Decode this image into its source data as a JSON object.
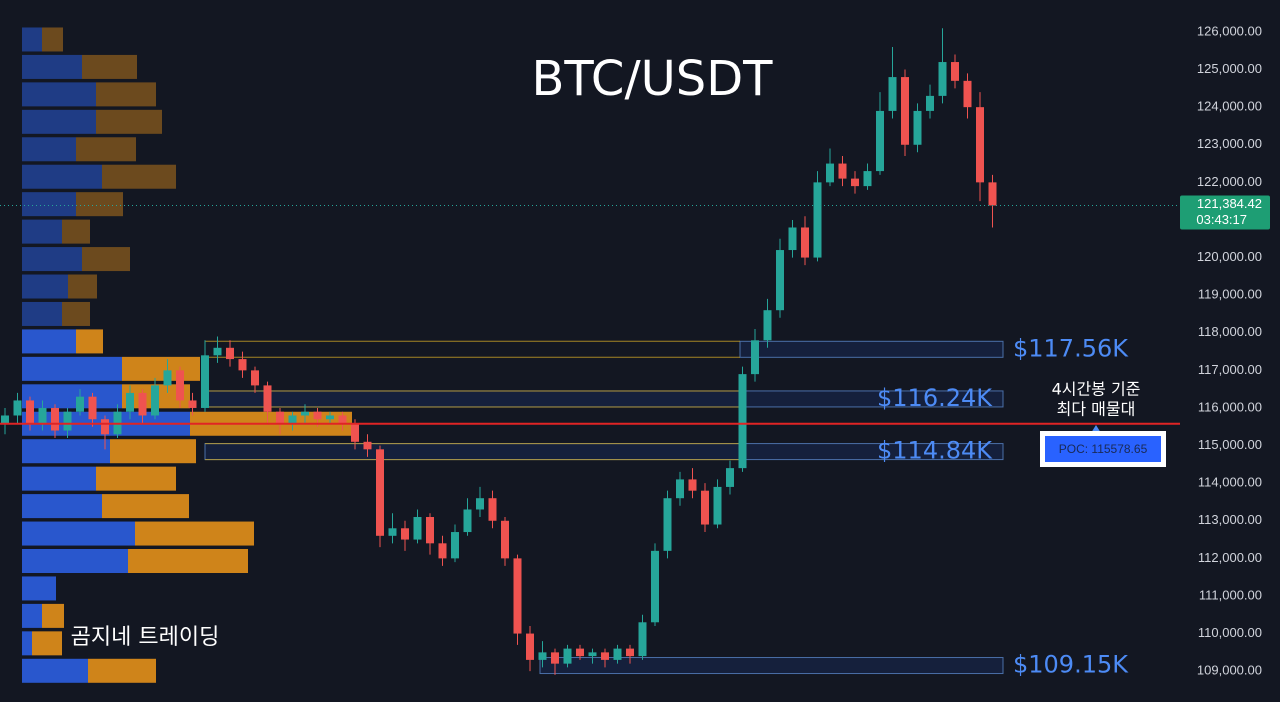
{
  "chart_data": {
    "type": "candlestick",
    "title": "BTC/USDT",
    "watermark": "곰지네 트레이딩",
    "ylim": [
      108180,
      126850
    ],
    "yticks": [
      {
        "value": 109000,
        "label": "109,000.00"
      },
      {
        "value": 110000,
        "label": "110,000.00"
      },
      {
        "value": 111000,
        "label": "111,000.00"
      },
      {
        "value": 112000,
        "label": "112,000.00"
      },
      {
        "value": 113000,
        "label": "113,000.00"
      },
      {
        "value": 114000,
        "label": "114,000.00"
      },
      {
        "value": 115000,
        "label": "115,000.00"
      },
      {
        "value": 116000,
        "label": "116,000.00"
      },
      {
        "value": 117000,
        "label": "117,000.00"
      },
      {
        "value": 118000,
        "label": "118,000.00"
      },
      {
        "value": 119000,
        "label": "119,000.00"
      },
      {
        "value": 120000,
        "label": "120,000.00"
      },
      {
        "value": 121000,
        "label": "121,000.00"
      },
      {
        "value": 122000,
        "label": "122,000.00"
      },
      {
        "value": 123000,
        "label": "123,000.00"
      },
      {
        "value": 124000,
        "label": "124,000.00"
      },
      {
        "value": 125000,
        "label": "125,000.00"
      },
      {
        "value": 126000,
        "label": "126,000.00"
      }
    ],
    "grid": false,
    "up_color": "#26a69a",
    "down_color": "#ef5350",
    "last_price": {
      "value": 121384.42,
      "label": "121,384.42"
    },
    "countdown": "03:43:17",
    "levels": [
      {
        "value": 117560,
        "label": "$117.56K"
      },
      {
        "value": 116240,
        "label": "$116.24K"
      },
      {
        "value": 114840,
        "label": "$114.84K"
      },
      {
        "value": 109150,
        "label": "$109.15K"
      }
    ],
    "poc": {
      "value": 115578.65,
      "label": "POC: 115578.65"
    },
    "annotation": [
      "4시간봉 기준",
      "최다 매물대"
    ],
    "volume_profile": {
      "prices": [
        125800,
        125070,
        124340,
        123610,
        122880,
        122150,
        121420,
        120690,
        119960,
        119230,
        118500,
        117770,
        117040,
        116310,
        115580,
        114850,
        114120,
        113390,
        112660,
        111930,
        111200,
        110470,
        109740,
        109010
      ],
      "buy": [
        20,
        60,
        74,
        74,
        54,
        80,
        54,
        40,
        60,
        46,
        40,
        54,
        100,
        100,
        168,
        88,
        74,
        80,
        113,
        106,
        34,
        20,
        10,
        66
      ],
      "sell": [
        21,
        55,
        60,
        66,
        60,
        74,
        47,
        28,
        48,
        29,
        28,
        27,
        78,
        68,
        162,
        86,
        80,
        87,
        119,
        120,
        0,
        22,
        30,
        68
      ],
      "buy_color": "#2a5bd7",
      "sell_color": "#d98a1a"
    },
    "ohlc": [
      [
        115600,
        116000,
        115300,
        115800
      ],
      [
        115800,
        116400,
        115600,
        116200
      ],
      [
        116200,
        116300,
        115400,
        115600
      ],
      [
        115600,
        116200,
        115400,
        116000
      ],
      [
        116000,
        116100,
        115200,
        115400
      ],
      [
        115400,
        116000,
        115200,
        115900
      ],
      [
        115900,
        116500,
        115800,
        116300
      ],
      [
        116300,
        116400,
        115500,
        115700
      ],
      [
        115700,
        115800,
        114900,
        115300
      ],
      [
        115300,
        116100,
        115200,
        115900
      ],
      [
        115900,
        116600,
        115700,
        116400
      ],
      [
        116400,
        116500,
        115600,
        115800
      ],
      [
        115800,
        116800,
        115700,
        116600
      ],
      [
        116600,
        117300,
        116400,
        117000
      ],
      [
        117000,
        117100,
        116000,
        116200
      ],
      [
        116200,
        116400,
        115800,
        116000
      ],
      [
        116000,
        117800,
        115900,
        117400
      ],
      [
        117400,
        117900,
        117200,
        117600
      ],
      [
        117600,
        117800,
        117100,
        117300
      ],
      [
        117300,
        117500,
        116800,
        117000
      ],
      [
        117000,
        117100,
        116400,
        116600
      ],
      [
        116600,
        116700,
        115600,
        115900
      ],
      [
        115900,
        116000,
        115300,
        115600
      ],
      [
        115600,
        115900,
        115400,
        115800
      ],
      [
        115800,
        116100,
        115600,
        115900
      ],
      [
        115900,
        116000,
        115500,
        115700
      ],
      [
        115700,
        115900,
        115600,
        115800
      ],
      [
        115800,
        115900,
        115400,
        115600
      ],
      [
        115600,
        115700,
        114900,
        115100
      ],
      [
        115100,
        115300,
        114700,
        114900
      ],
      [
        114900,
        115000,
        112300,
        112600
      ],
      [
        112600,
        113200,
        112400,
        112800
      ],
      [
        112800,
        113000,
        112200,
        112500
      ],
      [
        112500,
        113300,
        112400,
        113100
      ],
      [
        113100,
        113200,
        112100,
        112400
      ],
      [
        112400,
        112600,
        111800,
        112000
      ],
      [
        112000,
        112900,
        111900,
        112700
      ],
      [
        112700,
        113600,
        112600,
        113300
      ],
      [
        113300,
        113900,
        113100,
        113600
      ],
      [
        113600,
        113800,
        112800,
        113000
      ],
      [
        113000,
        113100,
        111800,
        112000
      ],
      [
        112000,
        112100,
        109700,
        110000
      ],
      [
        110000,
        110200,
        109000,
        109300
      ],
      [
        109300,
        109800,
        109100,
        109500
      ],
      [
        109500,
        109600,
        108900,
        109200
      ],
      [
        109200,
        109700,
        109100,
        109600
      ],
      [
        109600,
        109700,
        109300,
        109400
      ],
      [
        109400,
        109600,
        109200,
        109500
      ],
      [
        109500,
        109600,
        109100,
        109300
      ],
      [
        109300,
        109700,
        109200,
        109600
      ],
      [
        109600,
        109700,
        109200,
        109400
      ],
      [
        109400,
        110500,
        109300,
        110300
      ],
      [
        110300,
        112400,
        110200,
        112200
      ],
      [
        112200,
        113800,
        112000,
        113600
      ],
      [
        113600,
        114300,
        113400,
        114100
      ],
      [
        114100,
        114400,
        113600,
        113800
      ],
      [
        113800,
        114000,
        112700,
        112900
      ],
      [
        112900,
        114100,
        112800,
        113900
      ],
      [
        113900,
        114600,
        113700,
        114400
      ],
      [
        114400,
        117100,
        114300,
        116900
      ],
      [
        116900,
        118100,
        116700,
        117800
      ],
      [
        117800,
        118900,
        117600,
        118600
      ],
      [
        118600,
        120500,
        118400,
        120200
      ],
      [
        120200,
        121000,
        120000,
        120800
      ],
      [
        120800,
        121100,
        119800,
        120000
      ],
      [
        120000,
        122300,
        119900,
        122000
      ],
      [
        122000,
        122900,
        121900,
        122500
      ],
      [
        122500,
        122700,
        121900,
        122100
      ],
      [
        122100,
        122300,
        121700,
        121900
      ],
      [
        121900,
        122500,
        121800,
        122300
      ],
      [
        122300,
        124400,
        122200,
        123900
      ],
      [
        123900,
        125600,
        123700,
        124800
      ],
      [
        124800,
        125000,
        122700,
        123000
      ],
      [
        123000,
        124100,
        122800,
        123900
      ],
      [
        123900,
        124600,
        123700,
        124300
      ],
      [
        124300,
        126100,
        124100,
        125200
      ],
      [
        125200,
        125400,
        124500,
        124700
      ],
      [
        124700,
        124900,
        123700,
        124000
      ],
      [
        124000,
        124400,
        121500,
        122000
      ],
      [
        122000,
        122200,
        120800,
        121384.42
      ]
    ]
  }
}
